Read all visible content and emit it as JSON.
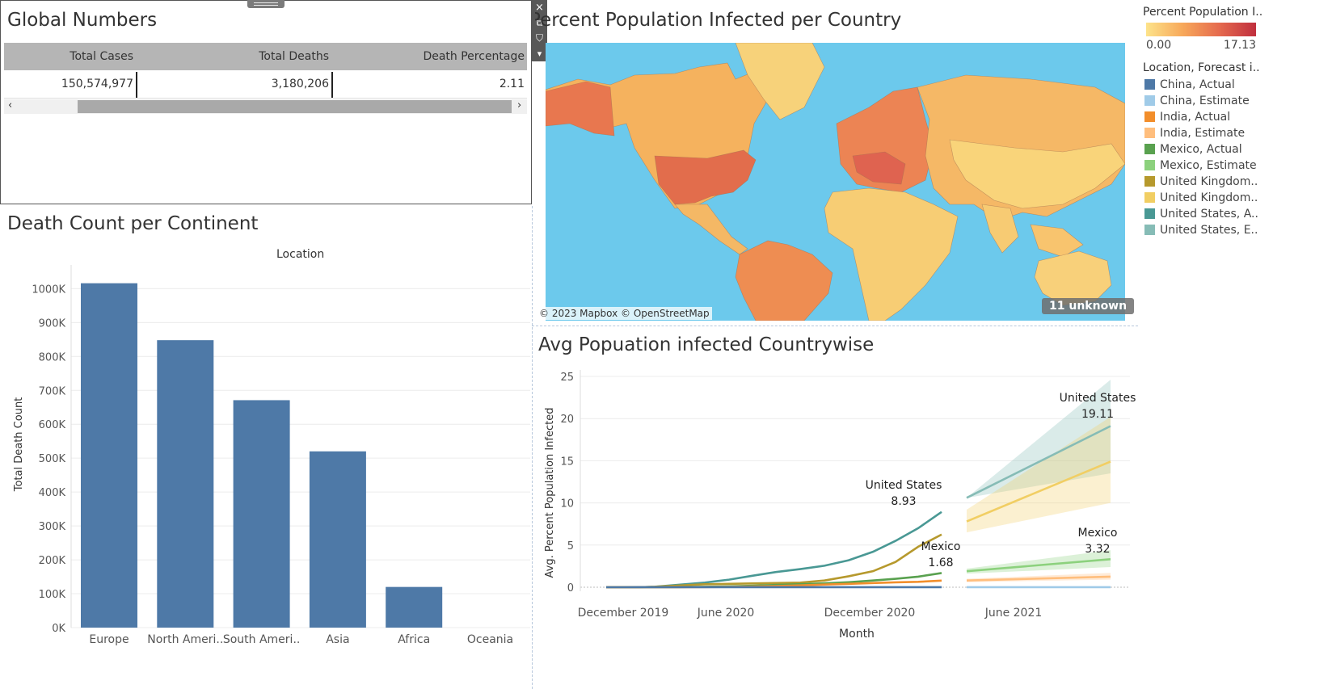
{
  "global_numbers": {
    "title": "Global Numbers",
    "headers": [
      "Total Cases",
      "Total Deaths",
      "Death Percentage"
    ],
    "values": [
      "150,574,977",
      "3,180,206",
      "2.11"
    ]
  },
  "toolbar": {
    "close_icon": "×",
    "popout_icon": "⧉",
    "filter_icon": "⛉",
    "more_icon": "▾",
    "scroll_left": "‹",
    "scroll_right": "›"
  },
  "map_panel": {
    "title": "Percent Population Infected per Country",
    "attribution": "© 2023 Mapbox © OpenStreetMap",
    "unknown_badge": "11 unknown"
  },
  "legend_color": {
    "title": "Percent Population I..",
    "min": "0.00",
    "max": "17.13",
    "gradient": [
      "#fde38a",
      "#f7a85a",
      "#e56a4e",
      "#c02f3e"
    ]
  },
  "legend_lines": {
    "title": "Location, Forecast i..",
    "items": [
      {
        "label": "China, Actual",
        "color": "#4e79a7"
      },
      {
        "label": "China, Estimate",
        "color": "#a0cbe8"
      },
      {
        "label": "India, Actual",
        "color": "#f28e2b"
      },
      {
        "label": "India, Estimate",
        "color": "#ffbe7d"
      },
      {
        "label": "Mexico, Actual",
        "color": "#59a14f"
      },
      {
        "label": "Mexico, Estimate",
        "color": "#8cd17d"
      },
      {
        "label": "United Kingdom..",
        "color": "#b6992d"
      },
      {
        "label": "United Kingdom..",
        "color": "#f1ce63"
      },
      {
        "label": "United States, A..",
        "color": "#499894"
      },
      {
        "label": "United States, E..",
        "color": "#86bcb6"
      }
    ]
  },
  "bar_panel": {
    "title": "Death Count per Continent"
  },
  "line_panel": {
    "title": "Avg Popuation infected Countrywise"
  },
  "chart_data": [
    {
      "type": "bar",
      "title": "Death Count per Continent",
      "xlabel": "Location",
      "ylabel": "Total Death Count",
      "categories": [
        "Europe",
        "North Ameri..",
        "South Ameri..",
        "Asia",
        "Africa",
        "Oceania"
      ],
      "values": [
        1016000,
        848000,
        671000,
        520000,
        120000,
        1000
      ],
      "yticks": [
        0,
        100000,
        200000,
        300000,
        400000,
        500000,
        600000,
        700000,
        800000,
        900000,
        1000000
      ],
      "yticklabels": [
        "0K",
        "100K",
        "200K",
        "300K",
        "400K",
        "500K",
        "600K",
        "700K",
        "800K",
        "900K",
        "1000K"
      ],
      "ylim": [
        0,
        1070000
      ],
      "color": "#4e79a7",
      "grid": true
    },
    {
      "type": "line",
      "title": "Avg Popuation infected Countrywise",
      "xlabel": "Month",
      "ylabel": "Avg. Percent Population Infected",
      "xticks": [
        "December 2019",
        "June 2020",
        "December 2020",
        "June 2021"
      ],
      "ylim": [
        0,
        25
      ],
      "yticks": [
        0,
        5,
        10,
        15,
        20,
        25
      ],
      "actual_x": [
        "2019-12",
        "2020-01",
        "2020-02",
        "2020-03",
        "2020-04",
        "2020-05",
        "2020-06",
        "2020-07",
        "2020-08",
        "2020-09",
        "2020-10",
        "2020-11",
        "2020-12",
        "2021-01",
        "2021-02",
        "2021-03",
        "2021-04"
      ],
      "estimate_x": [
        "2021-05",
        "2021-12"
      ],
      "series": [
        {
          "name": "United States, Actual",
          "color": "#499894",
          "values": [
            0,
            0,
            0,
            0.05,
            0.3,
            0.55,
            0.9,
            1.35,
            1.8,
            2.15,
            2.55,
            3.2,
            4.2,
            5.5,
            7.0,
            8.3,
            8.93
          ]
        },
        {
          "name": "United Kingdom, Actual",
          "color": "#b6992d",
          "values": [
            0,
            0,
            0,
            0.05,
            0.2,
            0.35,
            0.4,
            0.45,
            0.5,
            0.55,
            0.8,
            1.3,
            1.9,
            3.0,
            4.8,
            5.9,
            6.25
          ]
        },
        {
          "name": "Mexico, Actual",
          "color": "#59a14f",
          "values": [
            0,
            0,
            0,
            0,
            0.02,
            0.05,
            0.1,
            0.18,
            0.27,
            0.36,
            0.46,
            0.6,
            0.8,
            1.0,
            1.25,
            1.5,
            1.68
          ]
        },
        {
          "name": "India, Actual",
          "color": "#f28e2b",
          "values": [
            0,
            0,
            0,
            0,
            0.01,
            0.02,
            0.04,
            0.08,
            0.14,
            0.22,
            0.32,
            0.4,
            0.5,
            0.58,
            0.64,
            0.7,
            0.78
          ]
        },
        {
          "name": "China, Actual",
          "color": "#4e79a7",
          "values": [
            0,
            0,
            0.01,
            0.01,
            0.01,
            0.01,
            0.01,
            0.01,
            0.01,
            0.01,
            0.01,
            0.01,
            0.01,
            0.01,
            0.01,
            0.01,
            0.01
          ]
        },
        {
          "name": "United States, Estimate",
          "color": "#86bcb6",
          "values": [
            10.6,
            19.11
          ],
          "band_low": [
            10.6,
            13.5
          ],
          "band_high": [
            10.6,
            24.6
          ]
        },
        {
          "name": "United Kingdom, Estimate",
          "color": "#f1ce63",
          "values": [
            7.8,
            14.9
          ],
          "band_low": [
            6.5,
            10.0
          ],
          "band_high": [
            9.2,
            20.2
          ]
        },
        {
          "name": "Mexico, Estimate",
          "color": "#8cd17d",
          "values": [
            1.9,
            3.32
          ],
          "band_low": [
            1.6,
            2.4
          ],
          "band_high": [
            2.2,
            4.4
          ]
        },
        {
          "name": "India, Estimate",
          "color": "#ffbe7d",
          "values": [
            0.8,
            1.25
          ],
          "band_low": [
            0.6,
            0.9
          ],
          "band_high": [
            1.0,
            1.7
          ]
        },
        {
          "name": "China, Estimate",
          "color": "#a0cbe8",
          "values": [
            0.01,
            0.01
          ]
        }
      ],
      "annotations": [
        {
          "label": "United States",
          "value": "8.93"
        },
        {
          "label": "Mexico",
          "value": "1.68"
        },
        {
          "label": "United States",
          "value": "19.11"
        },
        {
          "label": "Mexico",
          "value": "3.32"
        }
      ]
    }
  ]
}
